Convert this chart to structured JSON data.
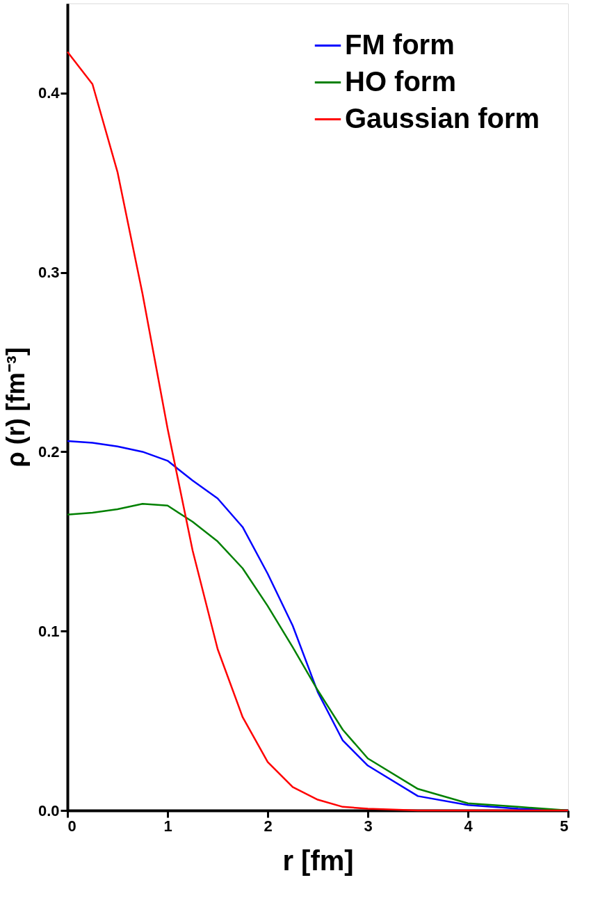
{
  "chart_data": {
    "type": "line",
    "xlabel": "r   [fm]",
    "ylabel": "ρ (r)    [fm⁻³]",
    "xlim": [
      0,
      5
    ],
    "xticks": [
      0,
      1,
      2,
      3,
      4,
      5
    ],
    "ylim": [
      0,
      0.45
    ],
    "yticks": [
      {
        "value": 0,
        "label": "0.0"
      },
      0.1,
      0.2,
      0.3,
      0.4
    ],
    "grid": false,
    "legend": "top right",
    "line_style": "solid",
    "marker": "none",
    "x": [
      0,
      0.25,
      0.5,
      0.75,
      1.0,
      1.25,
      1.5,
      1.75,
      2.0,
      2.25,
      2.5,
      2.75,
      3.0,
      3.5,
      4.0,
      4.5,
      5.0
    ],
    "series": [
      {
        "name": "FM form",
        "color": "#0000ff",
        "values": [
          0.206,
          0.205,
          0.203,
          0.2,
          0.195,
          0.184,
          0.174,
          0.158,
          0.132,
          0.103,
          0.066,
          0.039,
          0.025,
          0.008,
          0.003,
          0.001,
          0
        ]
      },
      {
        "name": "HO form",
        "color": "#008000",
        "values": [
          0.165,
          0.166,
          0.168,
          0.171,
          0.17,
          0.161,
          0.15,
          0.135,
          0.114,
          0.091,
          0.067,
          0.045,
          0.029,
          0.012,
          0.004,
          0.002,
          0
        ]
      },
      {
        "name": "Gaussian form",
        "color": "#ff0000",
        "values": [
          0.423,
          0.405,
          0.356,
          0.288,
          0.213,
          0.145,
          0.09,
          0.052,
          0.027,
          0.013,
          0.006,
          0.002,
          0.001,
          0,
          0,
          0,
          0
        ]
      }
    ]
  }
}
